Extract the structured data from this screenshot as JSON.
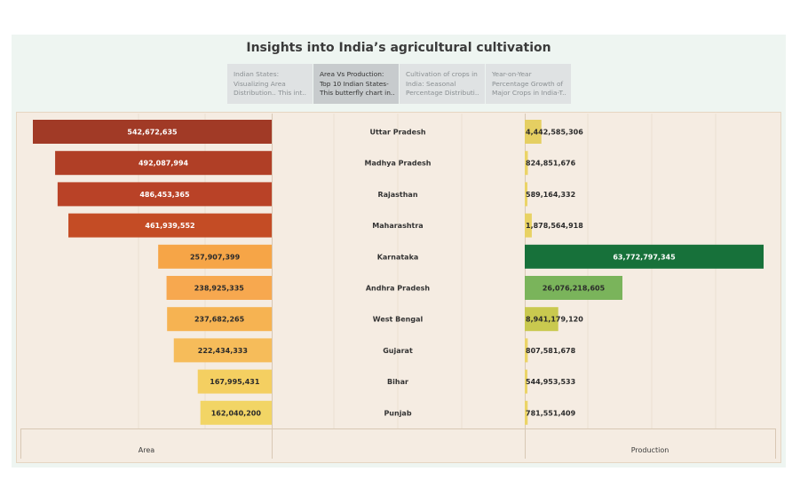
{
  "dashboard": {
    "title": "Insights into India’s agricultural cultivation",
    "tabs": [
      {
        "line1": "Indian States:",
        "line2": "Visualizing Area",
        "line3": "Distribution.. This int..",
        "active": false
      },
      {
        "line1": "Area Vs Production:",
        "line2": "Top 10 Indian States-",
        "line3": "This butterfly chart in..",
        "active": true
      },
      {
        "line1": "Cultivation of crops in",
        "line2": "India: Seasonal",
        "line3": "Percentage Distributi..",
        "active": false
      },
      {
        "line1": "Year-on-Year",
        "line2": "Percentage Growth of",
        "line3": "Major Crops in India-T..",
        "active": false
      }
    ]
  },
  "chart_data": {
    "type": "bar",
    "layout": "butterfly",
    "categories": [
      "Uttar Pradesh",
      "Madhya Pradesh",
      "Rajasthan",
      "Maharashtra",
      "Karnataka",
      "Andhra Pradesh",
      "West Bengal",
      "Gujarat",
      "Bihar",
      "Punjab"
    ],
    "series": [
      {
        "name": "Area",
        "values": [
          542672635,
          492087994,
          486453365,
          461939552,
          257907399,
          238925335,
          237682265,
          222434333,
          167995431,
          162040200
        ],
        "labels": [
          "542,672,635",
          "492,087,994",
          "486,453,365",
          "461,939,552",
          "257,907,399",
          "238,925,335",
          "237,682,265",
          "222,434,333",
          "167,995,431",
          "162,040,200"
        ],
        "colors": [
          "#a13a26",
          "#b03f26",
          "#b94227",
          "#c44c25",
          "#f6a547",
          "#f7a84f",
          "#f6b352",
          "#f6bc5a",
          "#f4cf61",
          "#f2d565"
        ]
      },
      {
        "name": "Production",
        "values": [
          4442585306,
          824851676,
          589164332,
          1878564918,
          63772797345,
          26076218605,
          8941179120,
          807581678,
          544953533,
          781551409
        ],
        "labels": [
          "4,442,585,306",
          "824,851,676",
          "589,164,332",
          "1,878,564,918",
          "63,772,797,345",
          "26,076,218,605",
          "8,941,179,120",
          "807,581,678",
          "544,953,533",
          "781,551,409"
        ],
        "colors": [
          "#e5cf62",
          "#ebd467",
          "#ebd467",
          "#e8d264",
          "#17713a",
          "#7ab45b",
          "#c9c94f",
          "#ebd467",
          "#ebd467",
          "#ebd467"
        ]
      }
    ],
    "xlabel_left": "Area",
    "xlabel_right": "Production"
  }
}
